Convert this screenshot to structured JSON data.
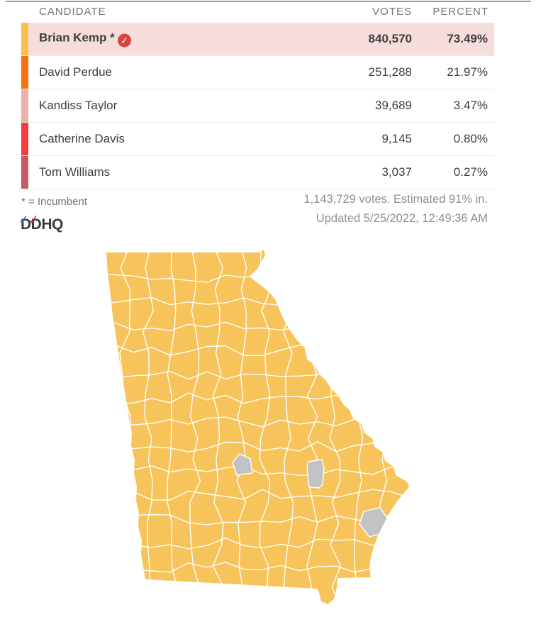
{
  "table": {
    "headers": {
      "candidate": "CANDIDATE",
      "votes": "VOTES",
      "percent": "PERCENT"
    },
    "rows": [
      {
        "name": "Brian Kemp",
        "incumbent": true,
        "winner": true,
        "highlight": true,
        "votes": "840,570",
        "percent": "73.49%",
        "color": "#F6C24F"
      },
      {
        "name": "David Perdue",
        "incumbent": false,
        "winner": false,
        "highlight": false,
        "votes": "251,288",
        "percent": "21.97%",
        "color": "#F8700E"
      },
      {
        "name": "Kandiss Taylor",
        "incumbent": false,
        "winner": false,
        "highlight": false,
        "votes": "39,689",
        "percent": "3.47%",
        "color": "#EFAFAA"
      },
      {
        "name": "Catherine Davis",
        "incumbent": false,
        "winner": false,
        "highlight": false,
        "votes": "9,145",
        "percent": "0.80%",
        "color": "#F03C3E"
      },
      {
        "name": "Tom Williams",
        "incumbent": false,
        "winner": false,
        "highlight": false,
        "votes": "3,037",
        "percent": "0.27%",
        "color": "#C55A64"
      }
    ]
  },
  "footer": {
    "incumbent_note": "* = Incumbent",
    "logo_text": "DDHQ",
    "totals_line": "1,143,729 votes. Estimated 91% in.",
    "updated_line": "Updated 5/25/2022, 12:49:36 AM"
  },
  "map": {
    "state": "Georgia",
    "type": "county-choropleth",
    "leading_candidate": "Brian Kemp",
    "county_fill": "#F6C45A",
    "county_border": "#FFFFFF",
    "no_result_fill": "#C1C2C4",
    "no_result_counties": 3
  },
  "colors": {
    "highlight_row": "#F7DCDC",
    "winner_badge": "#D7453F",
    "top_rule": "#9A9A9A",
    "row_divider": "#ECECEC",
    "header_text": "#757575",
    "body_text": "#3E3E3E",
    "muted_text": "#8F8F8F",
    "logo_text_color": "#3A3A3A",
    "logo_check_blue": "#3B72B8",
    "logo_check_red": "#C23B33"
  }
}
